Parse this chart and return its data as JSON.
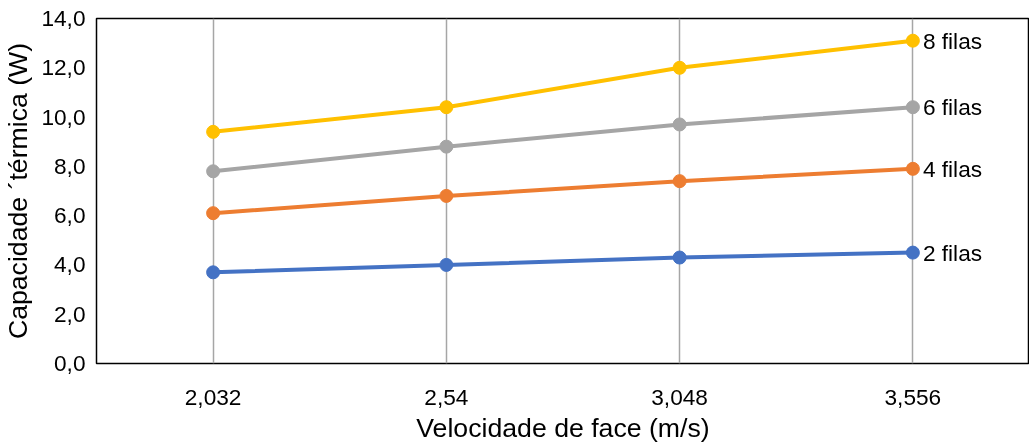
{
  "chart_data": {
    "type": "line",
    "xlabel": "Velocidade de face (m/s)",
    "ylabel": "Capacidade ´térmica (W)",
    "categories": [
      "2,032",
      "2,54",
      "3,048",
      "3,556"
    ],
    "ylim": [
      0,
      14
    ],
    "yticks": [
      {
        "value": 0,
        "label": "0,0"
      },
      {
        "value": 2,
        "label": "2,0"
      },
      {
        "value": 4,
        "label": "4,0"
      },
      {
        "value": 6,
        "label": "6,0"
      },
      {
        "value": 8,
        "label": "8,0"
      },
      {
        "value": 10,
        "label": "10,0"
      },
      {
        "value": 12,
        "label": "12,0"
      },
      {
        "value": 14,
        "label": "14,0"
      }
    ],
    "grid": "x",
    "legend": false,
    "marker": "circle",
    "line_style": "solid",
    "series": [
      {
        "name": "2 filas",
        "color": "#4472c4",
        "values": [
          3.7,
          4.0,
          4.3,
          4.5
        ]
      },
      {
        "name": "4 filas",
        "color": "#ed7d31",
        "values": [
          6.1,
          6.8,
          7.4,
          7.9
        ]
      },
      {
        "name": "6 filas",
        "color": "#a5a5a5",
        "values": [
          7.8,
          8.8,
          9.7,
          10.4
        ]
      },
      {
        "name": "8 filas",
        "color": "#ffc000",
        "values": [
          9.4,
          10.4,
          12.0,
          13.1
        ]
      }
    ]
  }
}
